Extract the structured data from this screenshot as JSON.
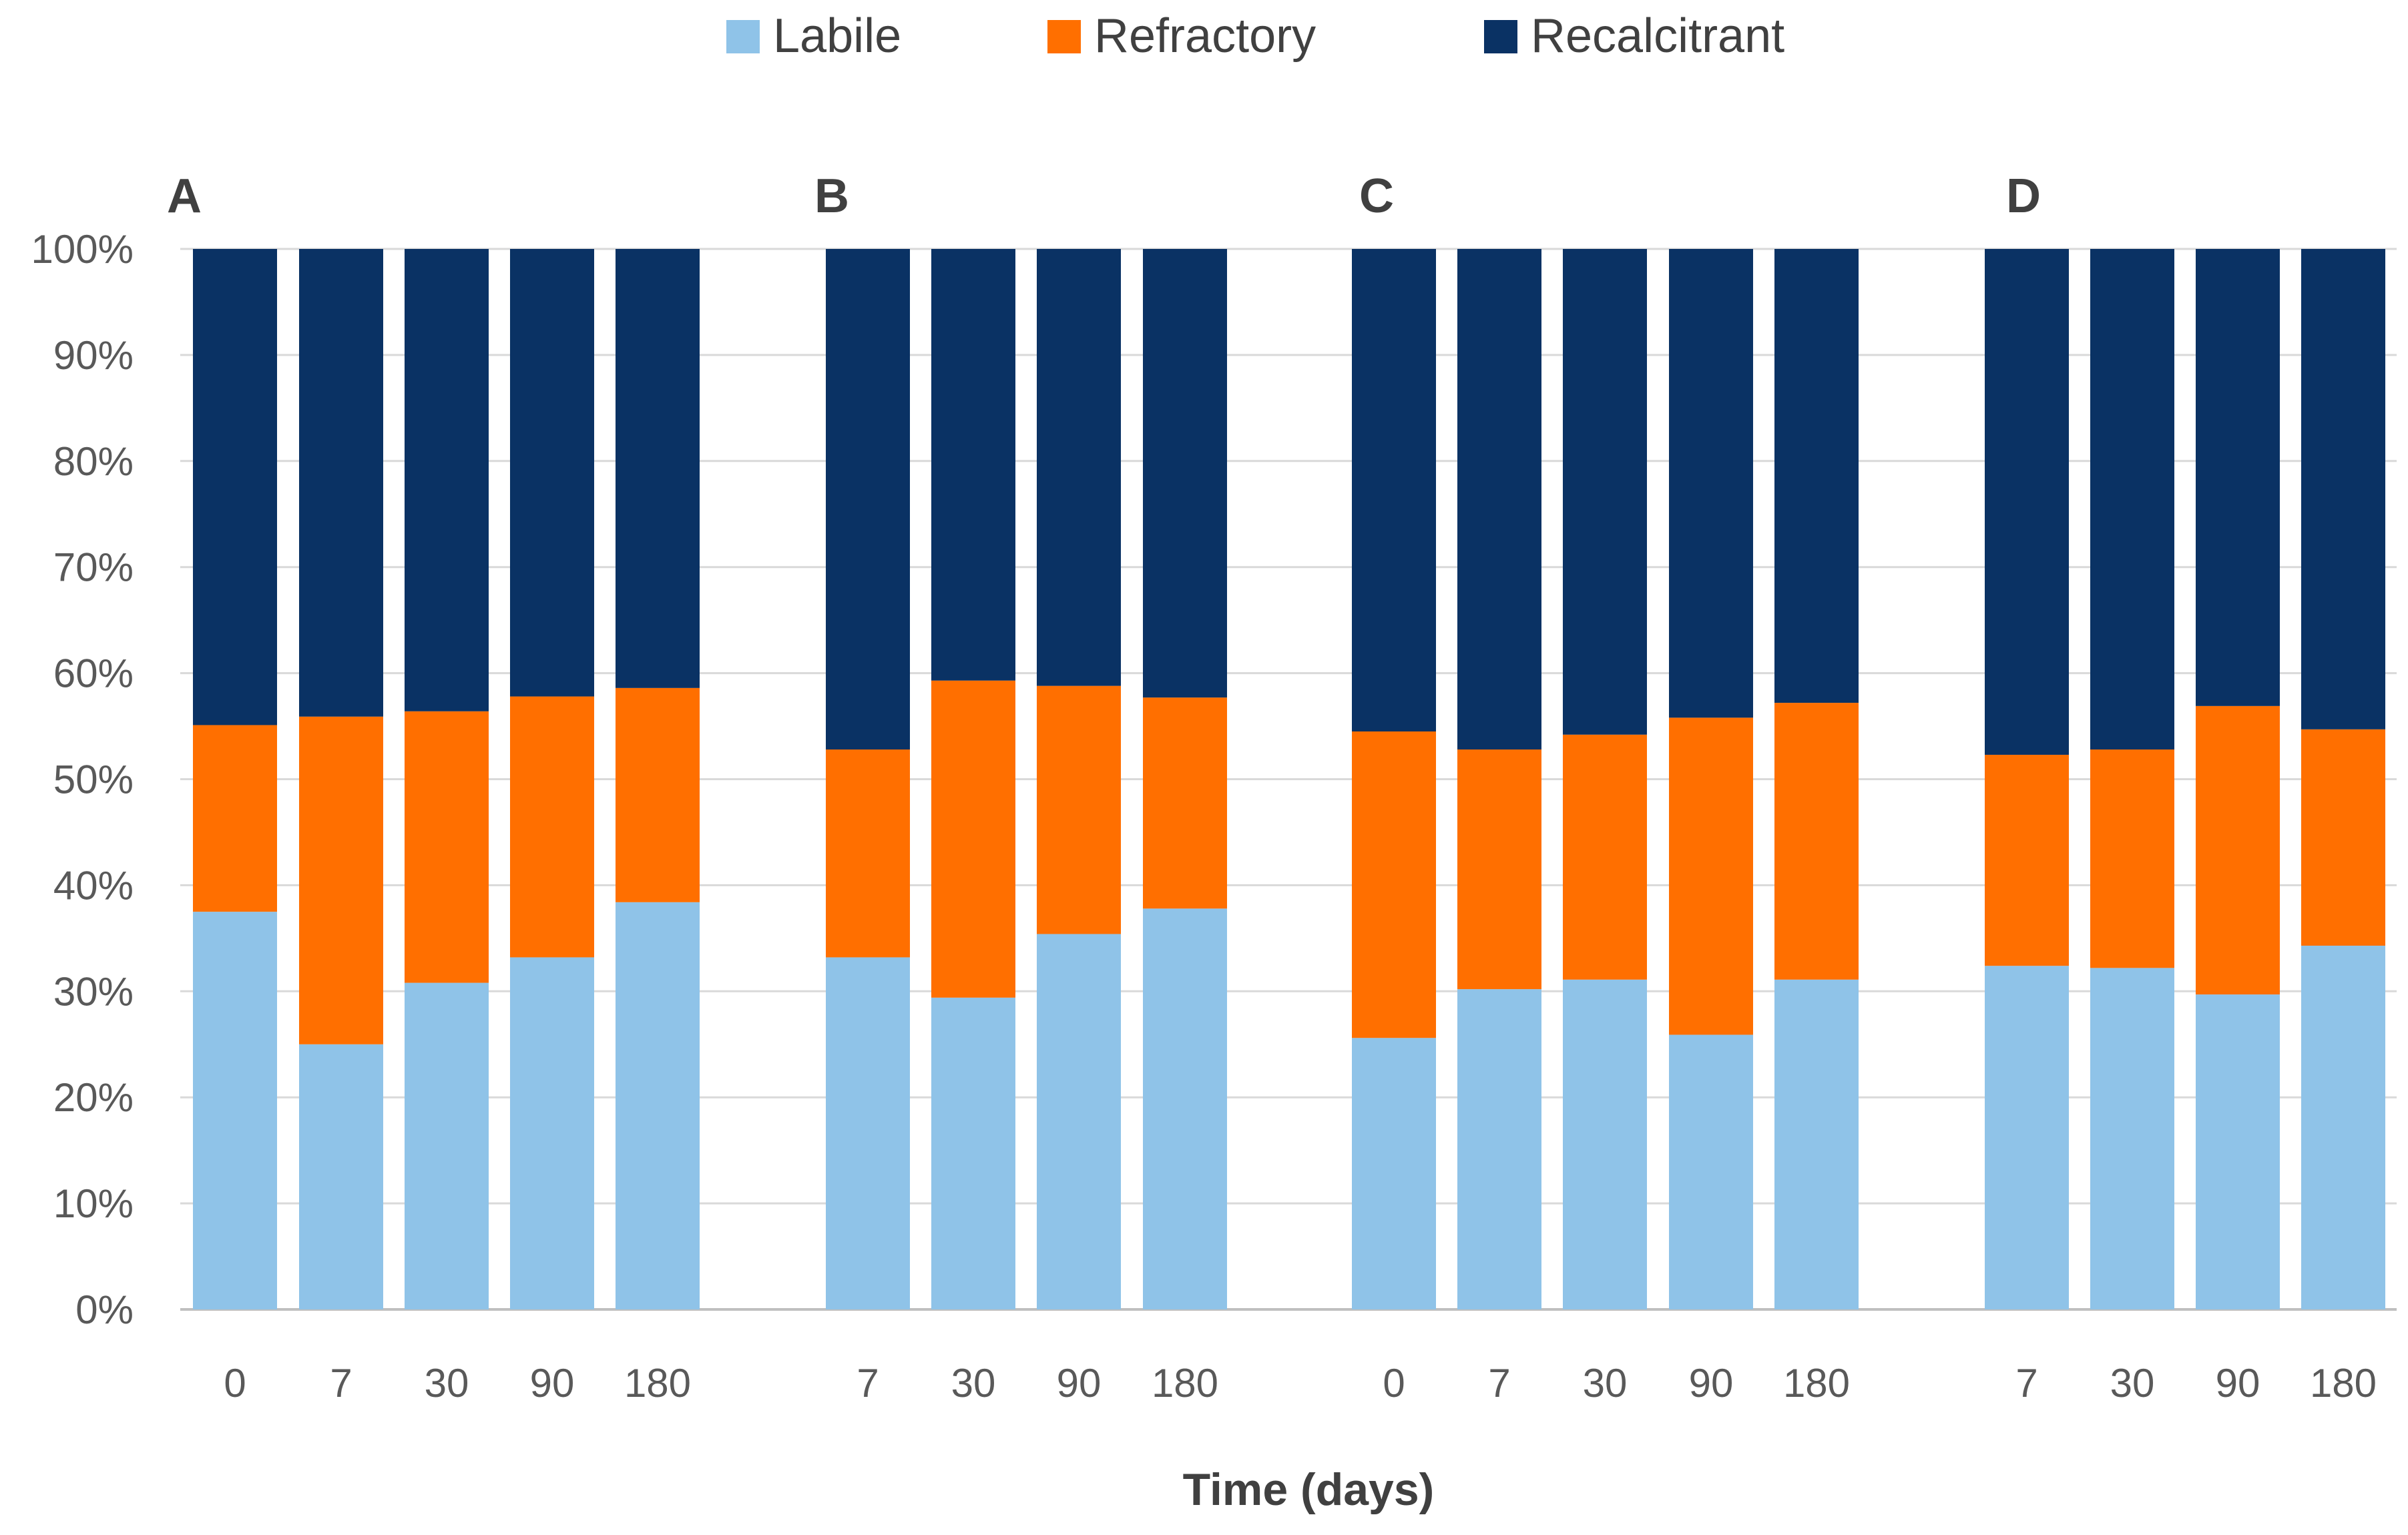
{
  "chart_data": {
    "type": "bar",
    "stacked": true,
    "normalized": true,
    "xlabel": "Time (days)",
    "ylabel": "",
    "ylim": [
      0,
      100
    ],
    "y_ticks": [
      "0%",
      "10%",
      "20%",
      "30%",
      "40%",
      "50%",
      "60%",
      "70%",
      "80%",
      "90%",
      "100%"
    ],
    "grid": true,
    "legend_position": "top-center",
    "series": [
      {
        "name": "Labile",
        "color": "#8fc3e8"
      },
      {
        "name": "Refractory",
        "color": "#ff6f00"
      },
      {
        "name": "Recalcitrant",
        "color": "#0a3264"
      }
    ],
    "panels": [
      {
        "label": "A",
        "categories": [
          "0",
          "7",
          "30",
          "90",
          "180"
        ],
        "Labile": [
          37.5,
          25,
          30.8,
          33.2,
          38.4
        ],
        "Refractory": [
          17.6,
          30.9,
          25.6,
          24.6,
          20.2
        ],
        "Recalcitrant": [
          44.9,
          44.1,
          43.6,
          42.2,
          41.4
        ]
      },
      {
        "label": "B",
        "categories": [
          "7",
          "30",
          "90",
          "180"
        ],
        "Labile": [
          33.2,
          29.4,
          35.4,
          37.8
        ],
        "Refractory": [
          19.6,
          29.9,
          23.4,
          19.9
        ],
        "Recalcitrant": [
          47.2,
          40.7,
          41.2,
          42.3
        ]
      },
      {
        "label": "C",
        "categories": [
          "0",
          "7",
          "30",
          "90",
          "180"
        ],
        "Labile": [
          25.6,
          30.2,
          31.1,
          25.9,
          31.1
        ],
        "Refractory": [
          28.9,
          22.6,
          23.1,
          29.9,
          26.1
        ],
        "Recalcitrant": [
          45.5,
          47.2,
          45.8,
          44.2,
          42.8
        ]
      },
      {
        "label": "D",
        "categories": [
          "7",
          "30",
          "90",
          "180"
        ],
        "Labile": [
          32.4,
          32.2,
          29.7,
          34.3
        ],
        "Refractory": [
          19.9,
          20.6,
          27.2,
          20.4
        ],
        "Recalcitrant": [
          47.7,
          47.2,
          43.1,
          45.3
        ]
      }
    ]
  }
}
